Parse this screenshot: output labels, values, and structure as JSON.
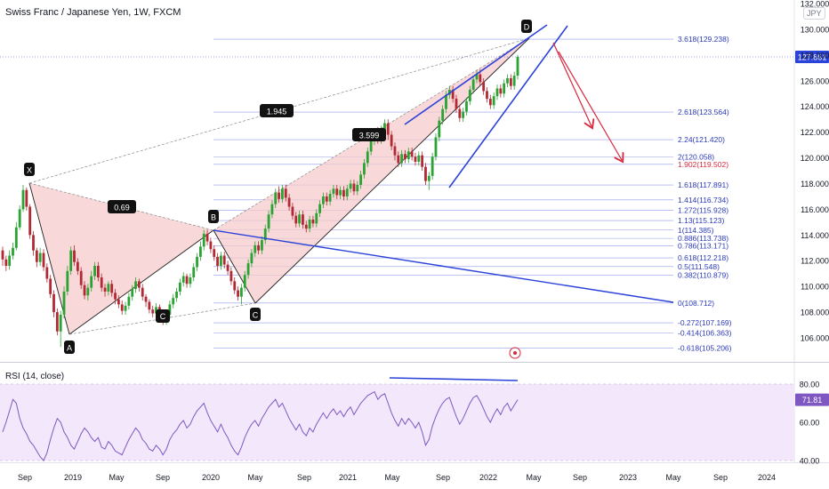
{
  "header": {
    "symbol_title": "Swiss Franc / Japanese Yen, 1W, FXCM",
    "currency": "JPY"
  },
  "rsi_panel": {
    "label": "RSI (14, close)",
    "current_value": "71.81",
    "axis_labels": [
      "80.00",
      "60.00",
      "40.00"
    ]
  },
  "colors": {
    "bull": "#26a69a",
    "bull_fill": "#2aa333",
    "bear": "#b22833",
    "fib": "#3b4bd8",
    "pattern_fill": "#f6cbcb",
    "trend_blue": "#2b43d9",
    "arrow_red": "#d8273b",
    "rsi_line": "#7e57c2",
    "rsi_band": "#f3e8fb"
  },
  "chart_data": {
    "type": "candlestick",
    "title": "Swiss Franc / Japanese Yen, 1W, FXCM",
    "last_price": "127.861",
    "y_axis_labels": [
      "132.000",
      "130.000",
      "128.000",
      "126.000",
      "124.000",
      "122.000",
      "120.000",
      "118.000",
      "116.000",
      "114.000",
      "112.000",
      "110.000",
      "108.000",
      "106.000"
    ],
    "x_axis_labels": [
      "Sep",
      "2019",
      "May",
      "Sep",
      "2020",
      "May",
      "Sep",
      "2021",
      "May",
      "Sep",
      "2022",
      "May",
      "Sep",
      "2023",
      "May",
      "Sep",
      "2024"
    ],
    "fib_levels": [
      {
        "label": "3.618(129.238)",
        "value": 129.238
      },
      {
        "label": "2.618(123.564)",
        "value": 123.564
      },
      {
        "label": "2.24(121.420)",
        "value": 121.42
      },
      {
        "label": "2(120.058)",
        "value": 120.058
      },
      {
        "label": "1.902(119.502)",
        "value": 119.502
      },
      {
        "label": "1.618(117.891)",
        "value": 117.891
      },
      {
        "label": "1.414(116.734)",
        "value": 116.734
      },
      {
        "label": "1.272(115.928)",
        "value": 115.928
      },
      {
        "label": "1.13(115.123)",
        "value": 115.123
      },
      {
        "label": "1(114.385)",
        "value": 114.385
      },
      {
        "label": "0.886(113.738)",
        "value": 113.738
      },
      {
        "label": "0.786(113.171)",
        "value": 113.171
      },
      {
        "label": "0.618(112.218)",
        "value": 112.218
      },
      {
        "label": "0.5(111.548)",
        "value": 111.548
      },
      {
        "label": "0.382(110.879)",
        "value": 110.879
      },
      {
        "label": "0(108.712)",
        "value": 108.712
      },
      {
        "label": "-0.272(107.169)",
        "value": 107.169
      },
      {
        "label": "-0.414(106.363)",
        "value": 106.363
      },
      {
        "label": "-0.618(105.206)",
        "value": 105.206
      }
    ],
    "pattern_points": [
      {
        "label": "X",
        "price": 117.9
      },
      {
        "label": "A",
        "price": 105.3
      },
      {
        "label": "B",
        "price": 114.3
      },
      {
        "label": "C",
        "price": 107.4
      },
      {
        "label": "D",
        "price": 129.3
      }
    ],
    "ratio_labels": [
      "0.69",
      "1.945",
      "3.599"
    ],
    "series": [
      {
        "values": [
          [
            112.8,
            112.1,
            113.1,
            111.6
          ],
          [
            112.1,
            111.6,
            112.4,
            111.2
          ],
          [
            111.6,
            112.4,
            112.8,
            111.3
          ],
          [
            112.4,
            113.0,
            113.4,
            112.1
          ],
          [
            113.0,
            114.6,
            115.0,
            112.8
          ],
          [
            114.6,
            116.0,
            116.3,
            114.4
          ],
          [
            116.0,
            117.5,
            117.9,
            115.8
          ],
          [
            117.5,
            116.2,
            117.7,
            115.9
          ],
          [
            116.2,
            114.0,
            116.4,
            113.7
          ],
          [
            114.0,
            112.8,
            114.3,
            112.4
          ],
          [
            112.8,
            111.9,
            113.0,
            111.5
          ],
          [
            111.9,
            112.6,
            113.0,
            111.6
          ],
          [
            112.6,
            111.5,
            112.9,
            111.2
          ],
          [
            111.5,
            110.6,
            111.8,
            110.3
          ],
          [
            110.6,
            109.4,
            110.9,
            109.1
          ],
          [
            109.4,
            108.0,
            109.7,
            107.6
          ],
          [
            108.0,
            106.5,
            108.3,
            106.2
          ],
          [
            106.5,
            107.8,
            108.1,
            105.3
          ],
          [
            107.8,
            109.6,
            110.0,
            107.5
          ],
          [
            109.6,
            111.2,
            111.6,
            109.3
          ],
          [
            111.2,
            112.8,
            113.1,
            110.9
          ],
          [
            112.8,
            111.9,
            113.2,
            111.6
          ],
          [
            111.9,
            111.2,
            112.2,
            110.9
          ],
          [
            111.2,
            110.1,
            111.5,
            109.8
          ],
          [
            110.1,
            109.3,
            110.4,
            109.0
          ],
          [
            109.3,
            109.9,
            110.2,
            108.9
          ],
          [
            109.9,
            110.8,
            111.2,
            109.6
          ],
          [
            110.8,
            111.6,
            111.9,
            110.5
          ],
          [
            111.6,
            110.7,
            111.9,
            110.4
          ],
          [
            110.7,
            109.9,
            111.0,
            109.6
          ],
          [
            109.9,
            109.6,
            110.2,
            109.2
          ],
          [
            109.6,
            110.2,
            110.4,
            109.3
          ],
          [
            110.2,
            109.5,
            110.5,
            109.2
          ],
          [
            109.5,
            109.0,
            109.8,
            108.6
          ],
          [
            109.0,
            108.6,
            109.3,
            108.3
          ],
          [
            108.6,
            108.1,
            108.9,
            107.8
          ],
          [
            108.1,
            108.5,
            108.8,
            107.8
          ],
          [
            108.5,
            109.2,
            109.5,
            108.2
          ],
          [
            109.2,
            109.8,
            110.1,
            108.9
          ],
          [
            109.8,
            110.4,
            110.7,
            109.5
          ],
          [
            110.4,
            109.9,
            110.6,
            109.6
          ],
          [
            109.9,
            109.2,
            110.2,
            108.9
          ],
          [
            109.2,
            108.8,
            109.4,
            108.4
          ],
          [
            108.8,
            108.2,
            109.0,
            107.9
          ],
          [
            108.2,
            107.9,
            108.5,
            107.6
          ],
          [
            107.9,
            108.4,
            108.7,
            107.6
          ],
          [
            108.4,
            107.9,
            108.6,
            107.5
          ],
          [
            107.9,
            107.3,
            108.1,
            107.0
          ],
          [
            107.3,
            107.8,
            108.0,
            107.0
          ],
          [
            107.8,
            108.6,
            108.9,
            107.5
          ],
          [
            108.6,
            109.1,
            109.4,
            108.3
          ],
          [
            109.1,
            109.6,
            109.9,
            108.8
          ],
          [
            109.6,
            110.3,
            110.6,
            109.3
          ],
          [
            110.3,
            110.8,
            111.1,
            110.0
          ],
          [
            110.8,
            110.2,
            111.0,
            109.9
          ],
          [
            110.2,
            110.7,
            111.0,
            109.9
          ],
          [
            110.7,
            111.5,
            111.8,
            110.4
          ],
          [
            111.5,
            112.3,
            112.6,
            111.2
          ],
          [
            112.3,
            113.1,
            113.5,
            112.0
          ],
          [
            113.1,
            114.1,
            114.4,
            112.8
          ],
          [
            114.1,
            113.5,
            114.4,
            113.2
          ],
          [
            113.5,
            112.9,
            113.8,
            112.6
          ],
          [
            112.9,
            112.3,
            113.2,
            112.0
          ],
          [
            112.3,
            111.6,
            112.6,
            111.2
          ],
          [
            111.6,
            112.4,
            112.7,
            111.3
          ],
          [
            112.4,
            111.7,
            112.7,
            111.4
          ],
          [
            111.7,
            111.2,
            112.0,
            110.9
          ],
          [
            111.2,
            110.4,
            111.5,
            110.1
          ],
          [
            110.4,
            109.7,
            110.7,
            109.4
          ],
          [
            109.7,
            109.2,
            110.0,
            108.9
          ],
          [
            109.2,
            109.9,
            110.2,
            108.6
          ],
          [
            109.9,
            110.9,
            111.2,
            109.6
          ],
          [
            110.9,
            111.8,
            112.1,
            110.6
          ],
          [
            111.8,
            112.6,
            112.9,
            111.5
          ],
          [
            112.6,
            113.2,
            113.5,
            112.3
          ],
          [
            113.2,
            112.8,
            113.5,
            112.5
          ],
          [
            112.8,
            113.6,
            113.9,
            112.5
          ],
          [
            113.6,
            114.5,
            114.8,
            113.3
          ],
          [
            114.5,
            115.6,
            115.9,
            114.2
          ],
          [
            115.6,
            116.4,
            116.7,
            115.3
          ],
          [
            116.4,
            117.3,
            117.6,
            116.1
          ],
          [
            117.3,
            116.8,
            117.8,
            116.5
          ],
          [
            116.8,
            117.6,
            117.9,
            116.5
          ],
          [
            117.6,
            116.9,
            117.9,
            116.6
          ],
          [
            116.9,
            116.2,
            117.2,
            115.9
          ],
          [
            116.2,
            115.5,
            116.5,
            115.2
          ],
          [
            115.5,
            114.9,
            115.8,
            114.6
          ],
          [
            114.9,
            115.6,
            115.9,
            114.6
          ],
          [
            115.6,
            114.8,
            115.9,
            114.5
          ],
          [
            114.8,
            114.5,
            115.1,
            114.2
          ],
          [
            114.5,
            115.2,
            115.5,
            114.2
          ],
          [
            115.2,
            114.9,
            115.5,
            114.6
          ],
          [
            114.9,
            115.7,
            116.0,
            114.6
          ],
          [
            115.7,
            116.4,
            116.7,
            115.4
          ],
          [
            116.4,
            117.0,
            117.3,
            116.1
          ],
          [
            117.0,
            116.6,
            117.3,
            116.3
          ],
          [
            116.6,
            117.2,
            117.5,
            116.3
          ],
          [
            117.2,
            117.6,
            117.9,
            116.9
          ],
          [
            117.6,
            117.1,
            117.9,
            116.8
          ],
          [
            117.1,
            117.5,
            117.8,
            116.8
          ],
          [
            117.5,
            117.0,
            117.8,
            116.7
          ],
          [
            117.0,
            117.6,
            117.9,
            116.7
          ],
          [
            117.6,
            118.0,
            118.3,
            117.3
          ],
          [
            118.0,
            117.4,
            118.3,
            117.1
          ],
          [
            117.4,
            117.9,
            118.2,
            117.1
          ],
          [
            117.9,
            118.7,
            119.0,
            117.6
          ],
          [
            118.7,
            119.6,
            119.9,
            118.4
          ],
          [
            119.6,
            120.5,
            120.8,
            119.3
          ],
          [
            120.5,
            121.3,
            121.6,
            120.2
          ],
          [
            121.3,
            122.0,
            122.3,
            121.0
          ],
          [
            122.0,
            121.4,
            122.4,
            121.1
          ],
          [
            121.4,
            122.2,
            122.5,
            121.1
          ],
          [
            122.2,
            122.7,
            123.0,
            121.9
          ],
          [
            122.7,
            121.8,
            123.0,
            121.4
          ],
          [
            121.8,
            120.9,
            122.1,
            120.6
          ],
          [
            120.9,
            120.2,
            121.2,
            119.8
          ],
          [
            120.2,
            119.6,
            120.5,
            119.3
          ],
          [
            119.6,
            120.3,
            120.6,
            119.3
          ],
          [
            120.3,
            119.9,
            120.6,
            119.6
          ],
          [
            119.9,
            120.5,
            120.8,
            119.6
          ],
          [
            120.5,
            120.1,
            120.8,
            119.8
          ],
          [
            120.1,
            119.7,
            120.4,
            119.4
          ],
          [
            119.7,
            120.2,
            120.5,
            119.4
          ],
          [
            120.2,
            119.3,
            120.5,
            119.0
          ],
          [
            119.3,
            118.2,
            119.6,
            117.9
          ],
          [
            118.2,
            118.6,
            118.9,
            117.5
          ],
          [
            118.6,
            120.1,
            120.4,
            118.3
          ],
          [
            120.1,
            121.6,
            121.9,
            119.8
          ],
          [
            121.6,
            122.9,
            123.2,
            121.3
          ],
          [
            122.9,
            123.8,
            124.1,
            122.6
          ],
          [
            123.8,
            124.9,
            125.2,
            123.5
          ],
          [
            124.9,
            125.3,
            125.6,
            124.6
          ],
          [
            125.3,
            124.6,
            125.6,
            124.3
          ],
          [
            124.6,
            123.8,
            124.9,
            123.5
          ],
          [
            123.8,
            123.1,
            124.1,
            122.8
          ],
          [
            123.1,
            123.6,
            123.9,
            122.8
          ],
          [
            123.6,
            124.4,
            124.7,
            123.3
          ],
          [
            124.4,
            125.3,
            125.6,
            124.1
          ],
          [
            125.3,
            126.1,
            126.4,
            125.0
          ],
          [
            126.1,
            126.5,
            126.8,
            125.8
          ],
          [
            126.5,
            125.9,
            126.9,
            125.6
          ],
          [
            125.9,
            125.2,
            126.2,
            124.9
          ],
          [
            125.2,
            124.6,
            125.5,
            124.3
          ],
          [
            124.6,
            124.1,
            124.9,
            123.8
          ],
          [
            124.1,
            124.8,
            125.1,
            123.8
          ],
          [
            124.8,
            125.4,
            125.7,
            124.5
          ],
          [
            125.4,
            125.0,
            125.7,
            124.7
          ],
          [
            125.0,
            125.8,
            126.1,
            124.7
          ],
          [
            125.8,
            126.2,
            126.5,
            125.5
          ],
          [
            126.2,
            125.6,
            126.5,
            125.3
          ],
          [
            125.6,
            126.4,
            126.7,
            125.3
          ],
          [
            126.4,
            127.861,
            128.0,
            126.1
          ]
        ]
      }
    ],
    "rsi_values": [
      55,
      60,
      66,
      72,
      70,
      62,
      57,
      54,
      50,
      48,
      45,
      42,
      40,
      44,
      51,
      57,
      62,
      60,
      55,
      52,
      48,
      46,
      50,
      54,
      57,
      55,
      52,
      50,
      52,
      47,
      46,
      50,
      48,
      45,
      44,
      43,
      47,
      51,
      54,
      57,
      55,
      51,
      49,
      46,
      45,
      48,
      46,
      43,
      46,
      51,
      54,
      56,
      59,
      61,
      57,
      59,
      63,
      66,
      68,
      70,
      65,
      61,
      58,
      55,
      59,
      55,
      52,
      48,
      45,
      43,
      47,
      52,
      56,
      59,
      61,
      58,
      62,
      65,
      68,
      70,
      72,
      68,
      70,
      66,
      62,
      59,
      56,
      59,
      55,
      53,
      57,
      55,
      59,
      62,
      65,
      62,
      65,
      67,
      64,
      66,
      63,
      66,
      68,
      64,
      67,
      70,
      72,
      74,
      75,
      76,
      72,
      74,
      75,
      70,
      65,
      61,
      58,
      62,
      59,
      62,
      60,
      57,
      60,
      55,
      48,
      51,
      58,
      63,
      67,
      70,
      72,
      73,
      68,
      63,
      59,
      62,
      66,
      70,
      73,
      74,
      71,
      67,
      63,
      60,
      64,
      67,
      64,
      68,
      70,
      66,
      69,
      71.81
    ]
  }
}
